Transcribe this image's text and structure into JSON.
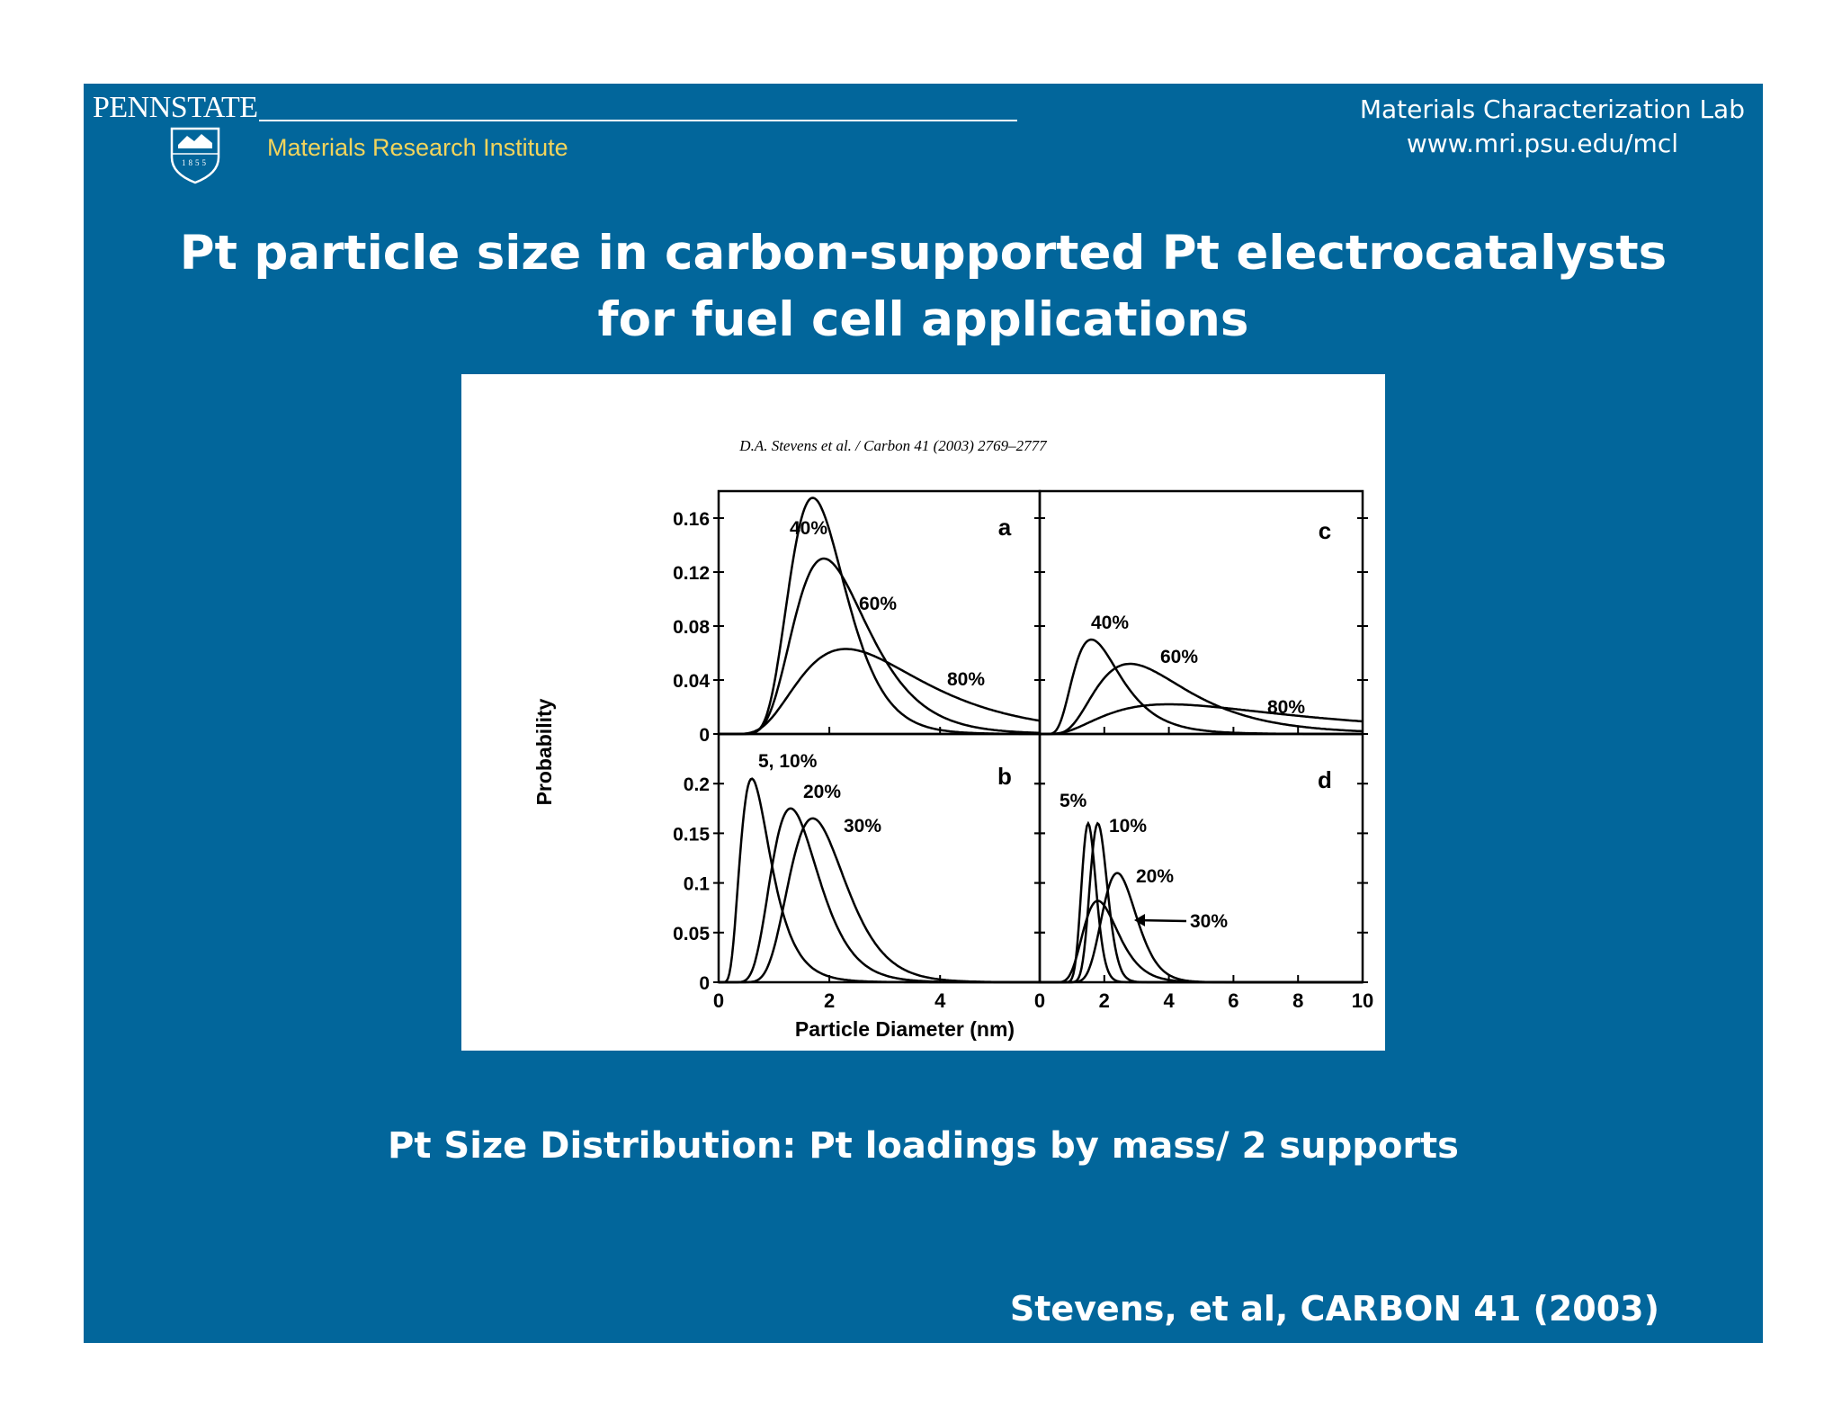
{
  "header": {
    "logo_text": "PENNSTATE",
    "shield_year": "1855",
    "institute": "Materials Research Institute",
    "lab_name": "Materials Characterization Lab",
    "lab_url": "www.mri.psu.edu/mcl"
  },
  "title_line1": "Pt particle size in carbon-supported Pt electrocatalysts",
  "title_line2": "for fuel cell applications",
  "caption": "Pt Size Distribution: Pt loadings by mass/ 2 supports",
  "citation": "Stevens, et al, CARBON 41 (2003)",
  "colors": {
    "background": "#02669b",
    "text": "#ffffff",
    "institute": "#f2d45c",
    "figure_bg": "#ffffff",
    "curve": "#000000"
  },
  "chart_data": {
    "type": "line",
    "figure_header": "D.A. Stevens et al. / Carbon 41 (2003) 2769–2777",
    "xlabel": "Particle Diameter (nm)",
    "ylabel": "Probability",
    "panels": [
      {
        "id": "a",
        "xlim": [
          0,
          5.8
        ],
        "ylim": [
          0,
          0.18
        ],
        "yticks": [
          "0",
          "0.04",
          "0.08",
          "0.12",
          "0.16"
        ],
        "xticks": [],
        "series": [
          {
            "name": "40%",
            "peak_x": 1.7,
            "peak_y": 0.175
          },
          {
            "name": "60%",
            "peak_x": 1.9,
            "peak_y": 0.13
          },
          {
            "name": "80%",
            "peak_x": 2.3,
            "peak_y": 0.063
          }
        ]
      },
      {
        "id": "b",
        "xlim": [
          0,
          5.8
        ],
        "ylim": [
          0,
          0.25
        ],
        "yticks": [
          "0",
          "0.05",
          "0.1",
          "0.15",
          "0.2"
        ],
        "xticks": [
          "0",
          "2",
          "4"
        ],
        "series": [
          {
            "name": "5, 10%",
            "peak_x": 0.6,
            "peak_y": 0.205
          },
          {
            "name": "20%",
            "peak_x": 1.3,
            "peak_y": 0.175
          },
          {
            "name": "30%",
            "peak_x": 1.7,
            "peak_y": 0.165
          }
        ]
      },
      {
        "id": "c",
        "xlim": [
          0,
          10
        ],
        "ylim": [
          0,
          0.18
        ],
        "yticks": [],
        "xticks": [],
        "series": [
          {
            "name": "40%",
            "peak_x": 1.6,
            "peak_y": 0.07
          },
          {
            "name": "60%",
            "peak_x": 2.8,
            "peak_y": 0.052
          },
          {
            "name": "80%",
            "peak_x": 4.0,
            "peak_y": 0.022
          }
        ]
      },
      {
        "id": "d",
        "xlim": [
          0,
          10
        ],
        "ylim": [
          0,
          0.25
        ],
        "yticks": [],
        "xticks": [
          "0",
          "2",
          "4",
          "6",
          "8",
          "10"
        ],
        "series": [
          {
            "name": "5%",
            "peak_x": 1.5,
            "peak_y": 0.16
          },
          {
            "name": "10%",
            "peak_x": 1.8,
            "peak_y": 0.16
          },
          {
            "name": "20%",
            "peak_x": 2.4,
            "peak_y": 0.11
          },
          {
            "name": "30%",
            "peak_x": 1.8,
            "peak_y": 0.082
          }
        ]
      }
    ]
  }
}
